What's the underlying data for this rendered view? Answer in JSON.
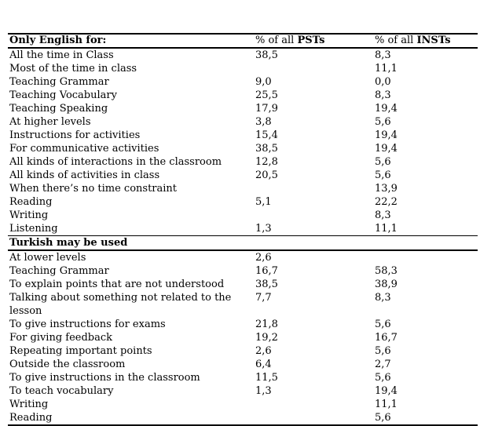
{
  "page": {
    "background_color": "#ffffff",
    "text_color": "#000000",
    "rule_color": "#000000"
  },
  "table": {
    "header": {
      "category": "Only English for:",
      "pct_of_all": "% of all ",
      "pst": "PSTs",
      "inst": "INSTs"
    },
    "sections": [
      {
        "rows": [
          {
            "label": "All the time in Class",
            "pst": "38,5",
            "inst": "8,3"
          },
          {
            "label": "Most of the time in class",
            "pst": "",
            "inst": "11,1"
          },
          {
            "label": "Teaching Grammar",
            "pst": "9,0",
            "inst": "0,0"
          },
          {
            "label": "Teaching Vocabulary",
            "pst": "25,5",
            "inst": "8,3"
          },
          {
            "label": "Teaching Speaking",
            "pst": "17,9",
            "inst": "19,4"
          },
          {
            "label": "At higher levels",
            "pst": "3,8",
            "inst": "5,6"
          },
          {
            "label": "Instructions for activities",
            "pst": "15,4",
            "inst": "19,4"
          },
          {
            "label": "For communicative activities",
            "pst": "38,5",
            "inst": "19,4"
          },
          {
            "label": "All kinds of interactions in the classroom",
            "pst": "12,8",
            "inst": "5,6"
          },
          {
            "label": "All kinds of activities in class",
            "pst": "20,5",
            "inst": "5,6"
          },
          {
            "label": "When there’s no time constraint",
            "pst": "",
            "inst": "13,9"
          },
          {
            "label": "Reading",
            "pst": "5,1",
            "inst": "22,2"
          },
          {
            "label": "Writing",
            "pst": "",
            "inst": "8,3"
          },
          {
            "label": "Listening",
            "pst": "1,3",
            "inst": "11,1"
          }
        ]
      },
      {
        "header": "Turkish may be used",
        "rows": [
          {
            "label": "At lower levels",
            "pst": "2,6",
            "inst": ""
          },
          {
            "label": "Teaching Grammar",
            "pst": "16,7",
            "inst": "58,3"
          },
          {
            "label": "To explain points that are not understood",
            "pst": "38,5",
            "inst": "38,9"
          },
          {
            "label": "Talking about something not related to the lesson",
            "pst": "7,7",
            "inst": "8,3"
          },
          {
            "label": "To give instructions for exams",
            "pst": "21,8",
            "inst": "5,6"
          },
          {
            "label": "For giving feedback",
            "pst": "19,2",
            "inst": "16,7"
          },
          {
            "label": "Repeating important points",
            "pst": "2,6",
            "inst": "5,6"
          },
          {
            "label": "Outside the classroom",
            "pst": "6,4",
            "inst": "2,7"
          },
          {
            "label": "To give instructions in the classroom",
            "pst": "11,5",
            "inst": "5,6"
          },
          {
            "label": "To teach vocabulary",
            "pst": "1,3",
            "inst": "19,4"
          },
          {
            "label": "Writing",
            "pst": "",
            "inst": "11,1"
          },
          {
            "label": "Reading",
            "pst": "",
            "inst": "5,6"
          }
        ]
      }
    ]
  }
}
